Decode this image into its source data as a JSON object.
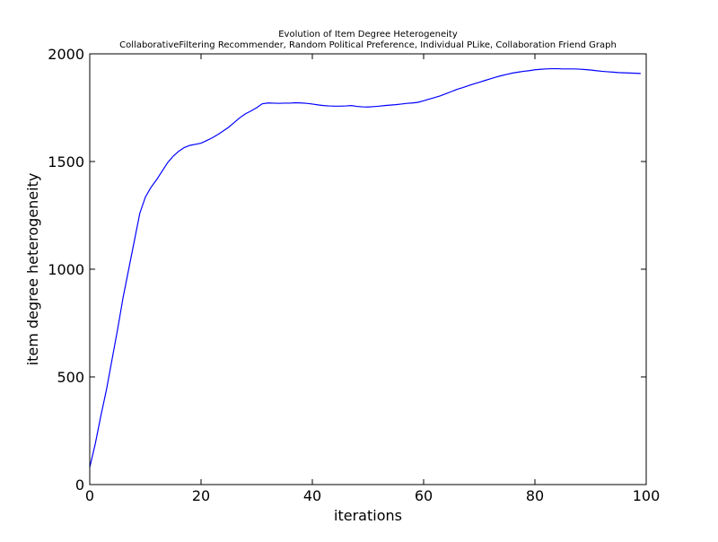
{
  "chart_data": {
    "type": "line",
    "title": "Evolution of Item Degree Heterogeneity",
    "subtitle": "CollaborativeFiltering Recommender, Random Political Preference, Individual PLike, Collaboration Friend Graph",
    "xlabel": "iterations",
    "ylabel": "item degree heterogeneity",
    "xlim": [
      0,
      100
    ],
    "ylim": [
      0,
      2000
    ],
    "xticks": [
      0,
      20,
      40,
      60,
      80,
      100
    ],
    "yticks": [
      0,
      500,
      1000,
      1500,
      2000
    ],
    "xtick_labels": [
      "0",
      "20",
      "40",
      "60",
      "80",
      "100"
    ],
    "ytick_labels": [
      "0",
      "500",
      "1000",
      "1500",
      "2000"
    ],
    "grid": false,
    "line_color": "#0000ff",
    "series": [
      {
        "x": [
          0,
          1,
          2,
          3,
          4,
          5,
          6,
          7,
          8,
          9,
          10,
          11,
          12,
          13,
          14,
          15,
          16,
          17,
          18,
          19,
          20,
          21,
          22,
          23,
          24,
          25,
          26,
          27,
          28,
          29,
          30,
          31,
          32,
          33,
          34,
          35,
          36,
          37,
          38,
          39,
          40,
          41,
          42,
          43,
          44,
          45,
          46,
          47,
          48,
          49,
          50,
          51,
          52,
          53,
          54,
          55,
          56,
          57,
          58,
          59,
          60,
          61,
          62,
          63,
          64,
          65,
          66,
          67,
          68,
          69,
          70,
          71,
          72,
          73,
          74,
          75,
          76,
          77,
          78,
          79,
          80,
          81,
          82,
          83,
          84,
          85,
          86,
          87,
          88,
          89,
          90,
          91,
          92,
          93,
          94,
          95,
          96,
          97,
          98,
          99
        ],
        "values": [
          80,
          190,
          320,
          440,
          580,
          720,
          870,
          1000,
          1130,
          1260,
          1335,
          1380,
          1415,
          1455,
          1495,
          1525,
          1548,
          1565,
          1575,
          1580,
          1585,
          1597,
          1610,
          1625,
          1642,
          1660,
          1682,
          1704,
          1722,
          1735,
          1750,
          1768,
          1772,
          1771,
          1770,
          1771,
          1771,
          1773,
          1772,
          1770,
          1767,
          1763,
          1760,
          1758,
          1757,
          1757,
          1758,
          1760,
          1756,
          1754,
          1753,
          1755,
          1757,
          1760,
          1762,
          1764,
          1767,
          1770,
          1772,
          1775,
          1782,
          1790,
          1797,
          1805,
          1815,
          1825,
          1835,
          1843,
          1852,
          1860,
          1868,
          1876,
          1884,
          1892,
          1899,
          1905,
          1911,
          1915,
          1919,
          1922,
          1926,
          1928,
          1930,
          1931,
          1931,
          1930,
          1930,
          1930,
          1929,
          1927,
          1925,
          1922,
          1919,
          1917,
          1915,
          1913,
          1912,
          1911,
          1910,
          1909
        ]
      }
    ]
  }
}
